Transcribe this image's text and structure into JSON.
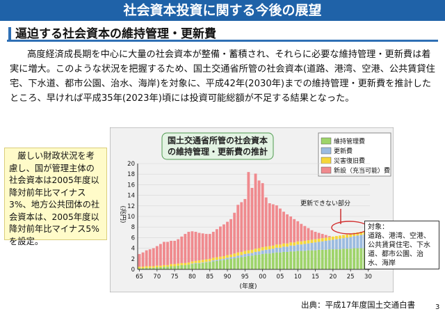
{
  "slide": {
    "title": "社会資本投資に関する今後の展望",
    "subtitle": "逼迫する社会資本の維持管理・更新費",
    "paragraph": "高度経済成長期を中心に大量の社会資本が整備・蓄積され、それらに必要な維持管理・更新費は着実に増大。このような状況を把握するため、国土交通省所管の社会資本(道路、港湾、空港、公共賃貸住宅、下水道、都市公園、治水、海岸)を対象に、平成42年(2030年)までの維持管理・更新費を推計したところ、早ければ平成35年(2023年)頃には投資可能総額が不足する結果となった。",
    "side_note": "厳しい財政状況を考慮し、国が管理主体の社会資本は2005年度以降対前年比マイナス3%、地方公共団体の社会資本は、2005年度以降対前年比マイナス5%を設定。",
    "source": "出典：平成17年度国土交通白書",
    "page_number": "3"
  },
  "chart_data": {
    "type": "bar",
    "stacked": true,
    "title_line1": "国土交通省所管の社会資本",
    "title_line2": "の維持管理・更新費の推計",
    "ylabel": "(兆円)",
    "xlabel": "(年度)",
    "ylim": [
      0,
      20
    ],
    "yticks": [
      "0",
      "2",
      "4",
      "6",
      "8",
      "10",
      "12",
      "14",
      "16",
      "18",
      "20"
    ],
    "x_tick_labels": [
      "65",
      "70",
      "75",
      "80",
      "85",
      "90",
      "95",
      "00",
      "05",
      "10",
      "15",
      "20",
      "25",
      "30"
    ],
    "x": [
      65,
      66,
      67,
      68,
      69,
      70,
      71,
      72,
      73,
      74,
      75,
      76,
      77,
      78,
      79,
      80,
      81,
      82,
      83,
      84,
      85,
      86,
      87,
      88,
      89,
      90,
      91,
      92,
      93,
      94,
      95,
      96,
      97,
      98,
      99,
      100,
      101,
      102,
      103,
      104,
      105,
      106,
      107,
      108,
      109,
      110,
      111,
      112,
      113,
      114,
      115,
      116,
      117,
      118,
      119,
      120,
      121,
      122,
      123,
      124,
      125,
      126,
      127,
      128,
      129,
      130
    ],
    "series": [
      {
        "name": "維持管理費",
        "color": "#9ed46a",
        "values": [
          0.2,
          0.2,
          0.3,
          0.3,
          0.3,
          0.4,
          0.4,
          0.5,
          0.5,
          0.6,
          0.6,
          0.7,
          0.8,
          0.8,
          0.9,
          1.0,
          1.1,
          1.1,
          1.2,
          1.3,
          1.4,
          1.5,
          1.6,
          1.7,
          1.8,
          1.9,
          2.0,
          2.1,
          2.2,
          2.3,
          2.4,
          2.5,
          2.6,
          2.7,
          2.8,
          2.9,
          3.0,
          3.0,
          3.1,
          3.2,
          3.2,
          3.3,
          3.3,
          3.4,
          3.4,
          3.5,
          3.5,
          3.5,
          3.6,
          3.6,
          3.6,
          3.7,
          3.7,
          3.7,
          3.8,
          3.8,
          3.8,
          3.8,
          3.9,
          3.9,
          3.9,
          4.0,
          4.0,
          4.0,
          4.0,
          4.1
        ]
      },
      {
        "name": "更新費",
        "color": "#9bbbe0",
        "values": [
          0.0,
          0.0,
          0.0,
          0.0,
          0.0,
          0.0,
          0.0,
          0.0,
          0.0,
          0.0,
          0.0,
          0.0,
          0.0,
          0.0,
          0.0,
          0.1,
          0.1,
          0.1,
          0.1,
          0.1,
          0.1,
          0.2,
          0.2,
          0.2,
          0.2,
          0.3,
          0.3,
          0.3,
          0.4,
          0.4,
          0.5,
          0.5,
          0.5,
          0.6,
          0.6,
          0.7,
          0.7,
          0.8,
          0.8,
          0.9,
          0.9,
          1.0,
          1.0,
          1.1,
          1.1,
          1.2,
          1.2,
          1.3,
          1.3,
          1.4,
          1.5,
          1.5,
          1.6,
          1.7,
          1.7,
          1.8,
          1.9,
          2.0,
          2.0,
          2.1,
          2.2,
          2.3,
          2.4,
          2.5,
          2.6,
          2.7
        ]
      },
      {
        "name": "災害復旧費",
        "color": "#f5d63a",
        "values": [
          0.3,
          0.3,
          0.3,
          0.3,
          0.3,
          0.3,
          0.3,
          0.3,
          0.3,
          0.4,
          0.4,
          0.4,
          0.4,
          0.4,
          0.4,
          0.4,
          0.4,
          0.5,
          0.5,
          0.5,
          0.5,
          0.5,
          0.5,
          0.5,
          0.5,
          0.5,
          0.5,
          0.6,
          0.6,
          0.6,
          0.6,
          0.6,
          0.6,
          0.6,
          0.6,
          0.6,
          0.6,
          0.6,
          0.6,
          0.6,
          0.6,
          0.6,
          0.6,
          0.6,
          0.6,
          0.6,
          0.6,
          0.6,
          0.6,
          0.6,
          0.6,
          0.6,
          0.6,
          0.6,
          0.6,
          0.6,
          0.6,
          0.6,
          0.6,
          0.6,
          0.6,
          0.6,
          0.6,
          0.6,
          0.6,
          0.6
        ]
      },
      {
        "name": "新設（充当可能）費",
        "color": "#f08a8e",
        "values": [
          2.4,
          2.7,
          3.0,
          3.2,
          3.4,
          3.7,
          4.1,
          4.4,
          4.4,
          4.4,
          4.4,
          4.6,
          5.0,
          5.5,
          5.8,
          5.7,
          5.5,
          5.2,
          5.0,
          4.8,
          4.7,
          4.9,
          5.3,
          5.7,
          6.0,
          6.3,
          6.7,
          7.7,
          9.0,
          9.4,
          9.8,
          14.8,
          11.7,
          14.2,
          12.8,
          12.1,
          9.3,
          8.1,
          7.8,
          7.4,
          6.8,
          6.0,
          5.5,
          4.9,
          4.4,
          3.8,
          3.3,
          2.8,
          2.3,
          1.8,
          1.4,
          1.1,
          0.8,
          0.5,
          0.2,
          0.0,
          0.0,
          0.0,
          0.0,
          0.0,
          0.0,
          0.0,
          0.0,
          0.0,
          0.0,
          0.0
        ]
      }
    ],
    "annotation_unrenewable": "更新できない部分",
    "target_box": "対象：\n道路、港湾、空港、公共賃貸住宅、下水道、都市公園、治水、海岸"
  }
}
